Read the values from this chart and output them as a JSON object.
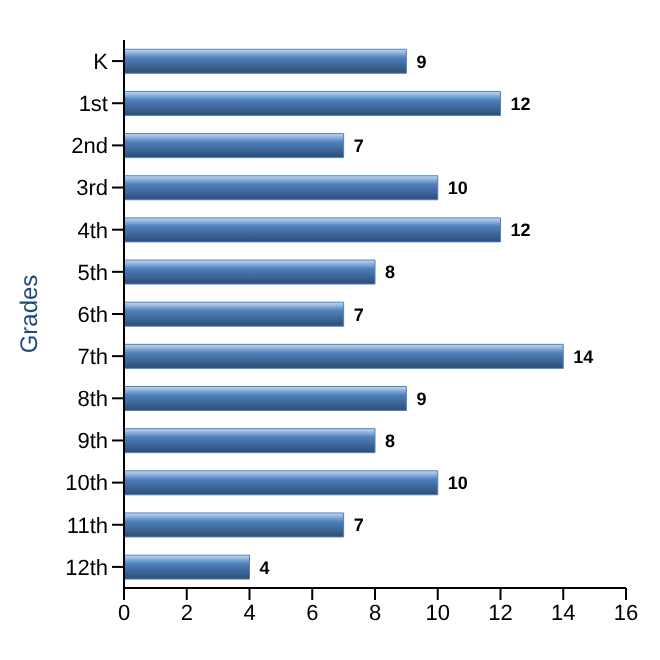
{
  "chart_data": {
    "type": "bar",
    "orientation": "horizontal",
    "ylabel": "Grades",
    "categories": [
      "K",
      "1st",
      "2nd",
      "3rd",
      "4th",
      "5th",
      "6th",
      "7th",
      "8th",
      "9th",
      "10th",
      "11th",
      "12th"
    ],
    "values": [
      9,
      12,
      7,
      10,
      12,
      8,
      7,
      14,
      9,
      8,
      10,
      7,
      4
    ],
    "color": "#4f81bd",
    "xlim": [
      0,
      16
    ],
    "xticks": [
      0,
      2,
      4,
      6,
      8,
      10,
      12,
      14,
      16
    ],
    "grid": false,
    "data_labels": true
  }
}
